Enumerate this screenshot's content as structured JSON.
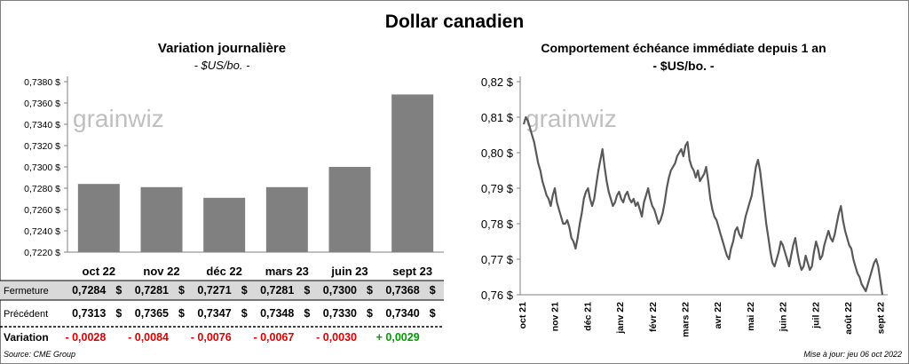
{
  "title": "Dollar canadien",
  "source": "Source: CME Group",
  "updated": "Mise à jour: jeu 06 oct 2022",
  "watermark": "grainwiz",
  "colors": {
    "bar": "#808080",
    "line": "#595959",
    "negative": "#e00000",
    "positive": "#00a000",
    "band": "#d9d9d9"
  },
  "chart_data": [
    {
      "type": "bar",
      "title": "Variation  journalière",
      "subtitle": "- $US/bo. -",
      "categories": [
        "oct 22",
        "nov 22",
        "déc 22",
        "mars 23",
        "juin 23",
        "sept 23"
      ],
      "values": [
        0.7284,
        0.7281,
        0.7271,
        0.7281,
        0.73,
        0.7368
      ],
      "ylim": [
        0.722,
        0.738
      ],
      "yticks": [
        "0,7220 $",
        "0,7240 $",
        "0,7260 $",
        "0,7280 $",
        "0,7300 $",
        "0,7320 $",
        "0,7340 $",
        "0,7360 $",
        "0,7380 $"
      ],
      "table": {
        "rows": [
          {
            "label": "Fermeture",
            "values": [
              "0,7284",
              "0,7281",
              "0,7271",
              "0,7281",
              "0,7300",
              "0,7368"
            ],
            "unit": "$"
          },
          {
            "label": "Précédent",
            "values": [
              "0,7313",
              "0,7365",
              "0,7347",
              "0,7348",
              "0,7330",
              "0,7340"
            ],
            "unit": "$"
          },
          {
            "label": "Variation",
            "values": [
              "- 0,0028",
              "- 0,0084",
              "- 0,0076",
              "- 0,0067",
              "- 0,0030",
              "+ 0,0029"
            ],
            "signs": [
              "neg",
              "neg",
              "neg",
              "neg",
              "neg",
              "pos"
            ]
          }
        ]
      }
    },
    {
      "type": "line",
      "title": "Comportement échéance immédiate depuis 1 an",
      "subtitle": "- $US/bo. -",
      "ylim": [
        0.76,
        0.82
      ],
      "yticks": [
        "0,76 $",
        "0,77 $",
        "0,78 $",
        "0,79 $",
        "0,80 $",
        "0,81 $",
        "0,82 $"
      ],
      "xticks": [
        "oct 21",
        "nov 21",
        "déc 21",
        "janv 22",
        "févr 22",
        "mars 22",
        "avr 22",
        "mai 22",
        "juin 22",
        "juil 22",
        "août 22",
        "sept 22"
      ],
      "series": [
        {
          "values": [
            0.808,
            0.81,
            0.809,
            0.807,
            0.805,
            0.803,
            0.8,
            0.797,
            0.795,
            0.792,
            0.79,
            0.788,
            0.787,
            0.785,
            0.788,
            0.79,
            0.786,
            0.784,
            0.782,
            0.78,
            0.78,
            0.781,
            0.779,
            0.776,
            0.775,
            0.773,
            0.776,
            0.78,
            0.783,
            0.787,
            0.789,
            0.79,
            0.787,
            0.785,
            0.787,
            0.791,
            0.795,
            0.798,
            0.801,
            0.796,
            0.792,
            0.789,
            0.787,
            0.785,
            0.786,
            0.788,
            0.789,
            0.787,
            0.786,
            0.788,
            0.789,
            0.787,
            0.786,
            0.787,
            0.785,
            0.786,
            0.784,
            0.782,
            0.786,
            0.788,
            0.79,
            0.787,
            0.785,
            0.784,
            0.782,
            0.78,
            0.781,
            0.783,
            0.786,
            0.79,
            0.793,
            0.795,
            0.796,
            0.797,
            0.799,
            0.8,
            0.801,
            0.799,
            0.802,
            0.803,
            0.798,
            0.796,
            0.795,
            0.793,
            0.795,
            0.792,
            0.793,
            0.794,
            0.796,
            0.792,
            0.787,
            0.784,
            0.782,
            0.781,
            0.779,
            0.777,
            0.775,
            0.773,
            0.771,
            0.77,
            0.773,
            0.775,
            0.778,
            0.779,
            0.777,
            0.776,
            0.779,
            0.782,
            0.784,
            0.786,
            0.788,
            0.792,
            0.796,
            0.798,
            0.795,
            0.79,
            0.785,
            0.78,
            0.776,
            0.772,
            0.769,
            0.768,
            0.77,
            0.772,
            0.775,
            0.774,
            0.772,
            0.77,
            0.768,
            0.771,
            0.774,
            0.776,
            0.772,
            0.769,
            0.767,
            0.768,
            0.771,
            0.769,
            0.767,
            0.768,
            0.772,
            0.775,
            0.773,
            0.77,
            0.771,
            0.774,
            0.776,
            0.778,
            0.776,
            0.775,
            0.777,
            0.78,
            0.783,
            0.785,
            0.781,
            0.778,
            0.776,
            0.774,
            0.773,
            0.77,
            0.768,
            0.766,
            0.765,
            0.763,
            0.762,
            0.761,
            0.763,
            0.765,
            0.767,
            0.769,
            0.77,
            0.768,
            0.764,
            0.76
          ]
        }
      ]
    }
  ]
}
